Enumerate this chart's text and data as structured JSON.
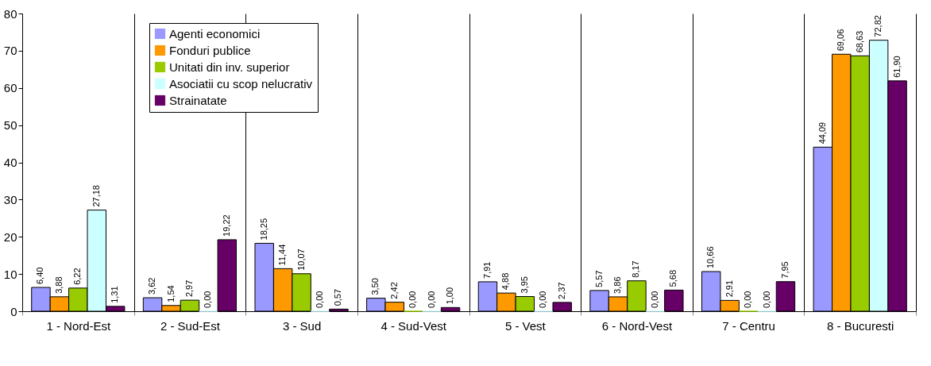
{
  "chart_data": {
    "type": "bar",
    "categories": [
      "1 - Nord-Est",
      "2 - Sud-Est",
      "3 - Sud",
      "4 - Sud-Vest",
      "5 - Vest",
      "6 - Nord-Vest",
      "7 - Centru",
      "8 - Bucuresti"
    ],
    "series": [
      {
        "name": "Agenti economici",
        "color": "#9999ff",
        "values": [
          6.4,
          3.62,
          18.25,
          3.5,
          7.91,
          5.57,
          10.66,
          44.09
        ],
        "value_labels": [
          "6,40",
          "3,62",
          "18,25",
          "3,50",
          "7,91",
          "5,57",
          "10,66",
          "44,09"
        ]
      },
      {
        "name": "Fonduri publice",
        "color": "#ff9900",
        "values": [
          3.88,
          1.54,
          11.44,
          2.42,
          4.88,
          3.86,
          2.91,
          69.06
        ],
        "value_labels": [
          "3,88",
          "1,54",
          "11,44",
          "2,42",
          "4,88",
          "3,86",
          "2,91",
          "69,06"
        ]
      },
      {
        "name": "Unitati din inv. superior",
        "color": "#99cc00",
        "values": [
          6.22,
          2.97,
          10.07,
          0.0,
          3.95,
          8.17,
          0.0,
          68.63
        ],
        "value_labels": [
          "6,22",
          "2,97",
          "10,07",
          "0,00",
          "3,95",
          "8,17",
          "0,00",
          "68,63"
        ]
      },
      {
        "name": "Asociatii cu scop nelucrativ",
        "color": "#ccffff",
        "values": [
          27.18,
          0.0,
          0.0,
          0.0,
          0.0,
          0.0,
          0.0,
          72.82
        ],
        "value_labels": [
          "27,18",
          "0,00",
          "0,00",
          "0,00",
          "0,00",
          "0,00",
          "0,00",
          "72,82"
        ]
      },
      {
        "name": "Strainatate",
        "color": "#660066",
        "values": [
          1.31,
          19.22,
          0.57,
          1.0,
          2.37,
          5.68,
          7.95,
          61.9
        ],
        "value_labels": [
          "1,31",
          "19,22",
          "0,57",
          "1,00",
          "2,37",
          "5,68",
          "7,95",
          "61,90"
        ]
      }
    ],
    "ylim": [
      0,
      80
    ],
    "yticks": [
      0,
      10,
      20,
      30,
      40,
      50,
      60,
      70,
      80
    ],
    "grid": "x",
    "legend": "top left"
  }
}
